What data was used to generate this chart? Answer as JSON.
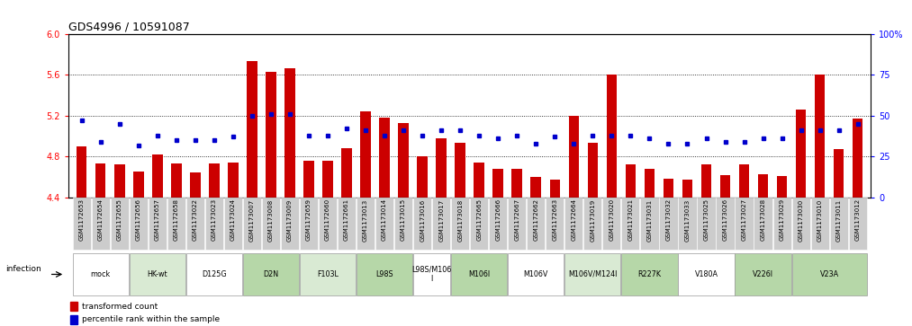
{
  "title": "GDS4996 / 10591087",
  "samples": [
    "GSM1172653",
    "GSM1172654",
    "GSM1172655",
    "GSM1172656",
    "GSM1172657",
    "GSM1172658",
    "GSM1173022",
    "GSM1173023",
    "GSM1173024",
    "GSM1173007",
    "GSM1173008",
    "GSM1173009",
    "GSM1172659",
    "GSM1172660",
    "GSM1172661",
    "GSM1173013",
    "GSM1173014",
    "GSM1173015",
    "GSM1173016",
    "GSM1173017",
    "GSM1173018",
    "GSM1172665",
    "GSM1172666",
    "GSM1172667",
    "GSM1172662",
    "GSM1172663",
    "GSM1172664",
    "GSM1173019",
    "GSM1173020",
    "GSM1173021",
    "GSM1173031",
    "GSM1173032",
    "GSM1173033",
    "GSM1173025",
    "GSM1173026",
    "GSM1173027",
    "GSM1173028",
    "GSM1173029",
    "GSM1173030",
    "GSM1173010",
    "GSM1173011",
    "GSM1173012"
  ],
  "bar_values": [
    4.9,
    4.73,
    4.72,
    4.65,
    4.82,
    4.73,
    4.64,
    4.73,
    4.74,
    5.74,
    5.63,
    5.67,
    4.76,
    4.76,
    4.88,
    5.24,
    5.18,
    5.13,
    4.8,
    4.98,
    4.93,
    4.74,
    4.68,
    4.68,
    4.6,
    4.57,
    5.2,
    4.93,
    5.6,
    4.72,
    4.68,
    4.58,
    4.57,
    4.72,
    4.62,
    4.72,
    4.63,
    4.61,
    5.26,
    5.6,
    4.87,
    5.17
  ],
  "dot_pct": [
    47,
    34,
    45,
    32,
    38,
    35,
    35,
    35,
    37,
    50,
    51,
    51,
    38,
    38,
    42,
    41,
    38,
    41,
    38,
    41,
    41,
    38,
    36,
    38,
    33,
    37,
    33,
    38,
    38,
    38,
    36,
    33,
    33,
    36,
    34,
    34,
    36,
    36,
    41,
    41,
    41,
    45
  ],
  "groups": [
    {
      "label": "mock",
      "start": 0,
      "end": 2,
      "color": "#ffffff"
    },
    {
      "label": "HK-wt",
      "start": 3,
      "end": 5,
      "color": "#d9ead3"
    },
    {
      "label": "D125G",
      "start": 6,
      "end": 8,
      "color": "#ffffff"
    },
    {
      "label": "D2N",
      "start": 9,
      "end": 11,
      "color": "#b6d7a8"
    },
    {
      "label": "F103L",
      "start": 12,
      "end": 14,
      "color": "#d9ead3"
    },
    {
      "label": "L98S",
      "start": 15,
      "end": 17,
      "color": "#b6d7a8"
    },
    {
      "label": "L98S/M106\nI",
      "start": 18,
      "end": 19,
      "color": "#ffffff"
    },
    {
      "label": "M106I",
      "start": 20,
      "end": 22,
      "color": "#b6d7a8"
    },
    {
      "label": "M106V",
      "start": 23,
      "end": 25,
      "color": "#ffffff"
    },
    {
      "label": "M106V/M124I",
      "start": 26,
      "end": 28,
      "color": "#d9ead3"
    },
    {
      "label": "R227K",
      "start": 29,
      "end": 31,
      "color": "#b6d7a8"
    },
    {
      "label": "V180A",
      "start": 32,
      "end": 34,
      "color": "#ffffff"
    },
    {
      "label": "V226I",
      "start": 35,
      "end": 37,
      "color": "#b6d7a8"
    },
    {
      "label": "V23A",
      "start": 38,
      "end": 41,
      "color": "#b6d7a8"
    }
  ],
  "ylim_left": [
    4.4,
    6.0
  ],
  "yticks_left": [
    4.4,
    4.8,
    5.2,
    5.6,
    6.0
  ],
  "ylim_right": [
    0,
    100
  ],
  "yticks_right": [
    0,
    25,
    50,
    75,
    100
  ],
  "bar_color": "#cc0000",
  "dot_color": "#0000cc",
  "infection_label": "infection",
  "legend_bar": "transformed count",
  "legend_dot": "percentile rank within the sample",
  "bg_color": "#ffffff",
  "tick_label_bg": "#cccccc"
}
